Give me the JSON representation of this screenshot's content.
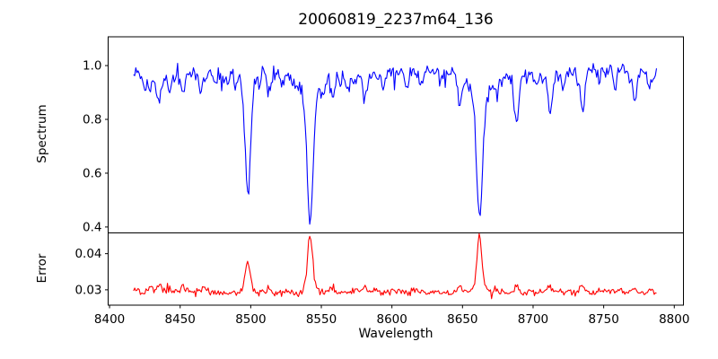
{
  "title": "20060819_2237m64_136",
  "chart_data": {
    "type": "line",
    "title": "20060819_2237m64_136",
    "xlabel": "Wavelength",
    "grid": false,
    "legend": "none",
    "xlim": [
      8399,
      8806.5
    ],
    "x_ticks": [
      8400,
      8450,
      8500,
      8550,
      8600,
      8650,
      8700,
      8750,
      8800
    ],
    "x_tick_labels": [
      "8400",
      "8450",
      "8500",
      "8550",
      "8600",
      "8650",
      "8700",
      "8750",
      "8800"
    ],
    "x_data_range": [
      8417,
      8788
    ],
    "absorption_minima": [
      {
        "wavelength": 8498,
        "flux": 0.58
      },
      {
        "wavelength": 8542,
        "flux": 0.42
      },
      {
        "wavelength": 8662,
        "flux": 0.43
      }
    ],
    "error_peaks": [
      {
        "wavelength": 8498,
        "value": 0.038
      },
      {
        "wavelength": 8542,
        "value": 0.045
      },
      {
        "wavelength": 8662,
        "value": 0.045
      }
    ],
    "error_baseline": 0.0295,
    "continuum_level": 0.97,
    "subplots": [
      {
        "name": "spectrum",
        "ylabel": "Spectrum",
        "color": "#0000ff",
        "ylim": [
          0.378,
          1.107
        ],
        "yticks": [
          1.0,
          0.8,
          0.6,
          0.4
        ],
        "ytick_labels": [
          "1.0",
          "0.8",
          "0.6",
          "0.4"
        ],
        "series": {
          "x_start": 8417,
          "x_end": 8788,
          "step": 0.8,
          "baseline": 0.968,
          "noise_amp": 0.024,
          "spike_prob": 0.05,
          "spike_scale": 1.9,
          "seed": 136,
          "undulation": [
            {
              "amp": 0.012,
              "period": 125,
              "phase": 3.6
            },
            {
              "amp": 0.007,
              "period": 47,
              "phase": 2.6
            }
          ],
          "features": [
            {
              "center": 8425,
              "amp": -0.035,
              "sigma": 1.2
            },
            {
              "center": 8429,
              "amp": -0.055,
              "sigma": 1.0
            },
            {
              "center": 8435,
              "amp": -0.085,
              "sigma": 1.4
            },
            {
              "center": 8443,
              "amp": -0.045,
              "sigma": 1.2
            },
            {
              "center": 8452,
              "amp": -0.06,
              "sigma": 1.3
            },
            {
              "center": 8464,
              "amp": -0.06,
              "sigma": 1.3
            },
            {
              "center": 8475,
              "amp": -0.03,
              "sigma": 1.0
            },
            {
              "center": 8483,
              "amp": -0.04,
              "sigma": 1.1
            },
            {
              "center": 8490,
              "amp": -0.035,
              "sigma": 1.1
            },
            {
              "center": 8498,
              "amp": -0.39,
              "sigma": 1.9
            },
            {
              "center": 8498,
              "amp": -0.06,
              "sigma": 5.0
            },
            {
              "center": 8506,
              "amp": -0.04,
              "sigma": 1.2
            },
            {
              "center": 8513,
              "amp": -0.085,
              "sigma": 1.4
            },
            {
              "center": 8522,
              "amp": -0.045,
              "sigma": 1.2
            },
            {
              "center": 8530,
              "amp": -0.035,
              "sigma": 1.1
            },
            {
              "center": 8542,
              "amp": -0.45,
              "sigma": 2.0
            },
            {
              "center": 8542,
              "amp": -0.1,
              "sigma": 5.5
            },
            {
              "center": 8551,
              "amp": -0.05,
              "sigma": 1.2
            },
            {
              "center": 8558,
              "amp": -0.08,
              "sigma": 1.4
            },
            {
              "center": 8569,
              "amp": -0.04,
              "sigma": 1.1
            },
            {
              "center": 8581,
              "amp": -0.065,
              "sigma": 1.3
            },
            {
              "center": 8594,
              "amp": -0.045,
              "sigma": 1.2
            },
            {
              "center": 8610,
              "amp": -0.05,
              "sigma": 1.3
            },
            {
              "center": 8621,
              "amp": -0.05,
              "sigma": 1.2
            },
            {
              "center": 8634,
              "amp": -0.04,
              "sigma": 1.1
            },
            {
              "center": 8648,
              "amp": -0.12,
              "sigma": 1.5
            },
            {
              "center": 8662,
              "amp": -0.44,
              "sigma": 2.0
            },
            {
              "center": 8662,
              "amp": -0.1,
              "sigma": 5.5
            },
            {
              "center": 8674,
              "amp": -0.055,
              "sigma": 1.2
            },
            {
              "center": 8688,
              "amp": -0.175,
              "sigma": 1.6
            },
            {
              "center": 8702,
              "amp": -0.04,
              "sigma": 1.1
            },
            {
              "center": 8712,
              "amp": -0.13,
              "sigma": 1.5
            },
            {
              "center": 8722,
              "amp": -0.045,
              "sigma": 1.1
            },
            {
              "center": 8735,
              "amp": -0.16,
              "sigma": 1.5
            },
            {
              "center": 8747,
              "amp": -0.04,
              "sigma": 1.1
            },
            {
              "center": 8758,
              "amp": -0.04,
              "sigma": 1.1
            },
            {
              "center": 8772,
              "amp": -0.095,
              "sigma": 1.4
            },
            {
              "center": 8783,
              "amp": -0.055,
              "sigma": 1.2
            }
          ]
        }
      },
      {
        "name": "error",
        "ylabel": "Error",
        "color": "#ff0000",
        "ylim": [
          0.02575,
          0.04575
        ],
        "yticks": [
          0.04,
          0.03
        ],
        "ytick_labels": [
          "0.04",
          "0.03"
        ],
        "series": {
          "x_start": 8417,
          "x_end": 8788,
          "step": 0.8,
          "baseline": 0.0293,
          "noise_amp": 0.00085,
          "spike_prob": 0.04,
          "spike_scale": 1.8,
          "seed": 64,
          "undulation": [
            {
              "amp": 0.0003,
              "period": 150,
              "phase": 0.8
            }
          ],
          "features": [
            {
              "center": 8429,
              "amp": 0.0012,
              "sigma": 1.2
            },
            {
              "center": 8435,
              "amp": 0.002,
              "sigma": 1.4
            },
            {
              "center": 8452,
              "amp": 0.0012,
              "sigma": 1.2
            },
            {
              "center": 8467,
              "amp": 0.0012,
              "sigma": 1.3
            },
            {
              "center": 8498,
              "amp": 0.0078,
              "sigma": 1.7
            },
            {
              "center": 8498,
              "amp": 0.001,
              "sigma": 4.0
            },
            {
              "center": 8513,
              "amp": 0.0014,
              "sigma": 1.3
            },
            {
              "center": 8542,
              "amp": 0.014,
              "sigma": 1.7
            },
            {
              "center": 8542,
              "amp": 0.002,
              "sigma": 4.0
            },
            {
              "center": 8558,
              "amp": 0.0013,
              "sigma": 1.3
            },
            {
              "center": 8581,
              "amp": 0.001,
              "sigma": 1.2
            },
            {
              "center": 8621,
              "amp": 0.0008,
              "sigma": 1.2
            },
            {
              "center": 8648,
              "amp": 0.0018,
              "sigma": 1.4
            },
            {
              "center": 8662,
              "amp": 0.014,
              "sigma": 1.7
            },
            {
              "center": 8662,
              "amp": 0.002,
              "sigma": 4.0
            },
            {
              "center": 8674,
              "amp": 0.001,
              "sigma": 1.2
            },
            {
              "center": 8688,
              "amp": 0.0019,
              "sigma": 1.5
            },
            {
              "center": 8712,
              "amp": 0.0016,
              "sigma": 1.4
            },
            {
              "center": 8735,
              "amp": 0.0018,
              "sigma": 1.4
            },
            {
              "center": 8772,
              "amp": 0.0012,
              "sigma": 1.3
            },
            {
              "center": 8783,
              "amp": 0.001,
              "sigma": 1.2
            }
          ]
        }
      }
    ]
  }
}
